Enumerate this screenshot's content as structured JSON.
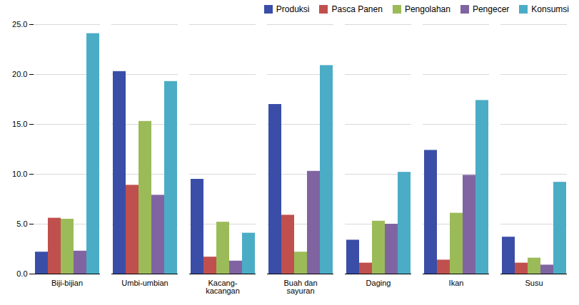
{
  "chart_data": {
    "type": "bar",
    "categories": [
      "Biji-bijian",
      "Umbi-umbian",
      "Kacang-\nkacangan",
      "Buah dan\nsayuran",
      "Daging",
      "Ikan",
      "Susu"
    ],
    "series": [
      {
        "name": "Produksi",
        "color": "#3A4EA8",
        "values": [
          2.2,
          20.3,
          9.5,
          17.0,
          3.4,
          12.4,
          3.7
        ]
      },
      {
        "name": "Pasca Panen",
        "color": "#C0504D",
        "values": [
          5.6,
          8.9,
          1.7,
          5.9,
          1.1,
          1.4,
          1.1
        ]
      },
      {
        "name": "Pengolahan",
        "color": "#9BBB59",
        "values": [
          5.5,
          15.3,
          5.2,
          2.2,
          5.3,
          6.1,
          1.6
        ]
      },
      {
        "name": "Pengecer",
        "color": "#8064A2",
        "values": [
          2.3,
          7.9,
          1.3,
          10.3,
          5.0,
          9.9,
          0.9
        ]
      },
      {
        "name": "Konsumsi",
        "color": "#4BACC6",
        "values": [
          24.1,
          19.3,
          4.1,
          20.9,
          10.2,
          17.4,
          9.2
        ]
      }
    ],
    "ylim": [
      0,
      25
    ],
    "yticks": [
      {
        "value": 0,
        "label": "0.0"
      },
      {
        "value": 5,
        "label": "5.0"
      },
      {
        "value": 10,
        "label": "10.0"
      },
      {
        "value": 15,
        "label": "15.0"
      },
      {
        "value": 20,
        "label": "20.0"
      },
      {
        "value": 25,
        "label": "25.0"
      }
    ],
    "grid": true,
    "legend": "upper right"
  }
}
